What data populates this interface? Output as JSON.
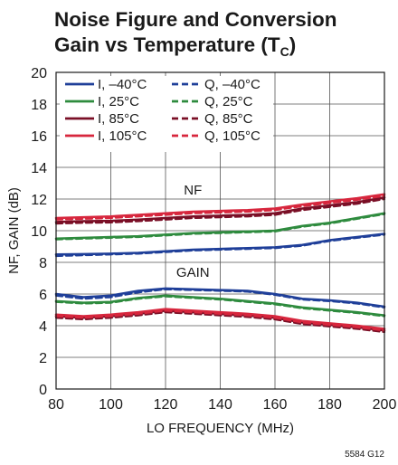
{
  "chart_data": {
    "type": "line",
    "title_line1": "Noise Figure and Conversion",
    "title_line2": "Gain vs Temperature (T",
    "title_sub": "C",
    "title_close": ")",
    "xlabel": "LO FREQUENCY (MHz)",
    "ylabel": "NF, GAIN (dB)",
    "xlim": [
      80,
      200
    ],
    "ylim": [
      0,
      20
    ],
    "xticks": [
      "80",
      "100",
      "120",
      "140",
      "160",
      "180",
      "200"
    ],
    "yticks": [
      "0",
      "2",
      "4",
      "6",
      "8",
      "10",
      "12",
      "14",
      "16",
      "18",
      "20"
    ],
    "grid": true,
    "legend_position": "top-left",
    "annotations": [
      "NF",
      "GAIN"
    ],
    "figure_code": "5584 G12",
    "x": [
      80,
      90,
      100,
      110,
      120,
      130,
      140,
      150,
      160,
      170,
      180,
      190,
      200
    ],
    "series": [
      {
        "name": "I, –40°C",
        "color": "#1f3f99",
        "dash": false,
        "group": "nf",
        "values": [
          8.5,
          8.52,
          8.55,
          8.6,
          8.7,
          8.8,
          8.85,
          8.9,
          8.95,
          9.1,
          9.4,
          9.6,
          9.8
        ]
      },
      {
        "name": "Q, –40°C",
        "color": "#1f3f99",
        "dash": true,
        "group": "nf",
        "values": [
          8.4,
          8.45,
          8.5,
          8.55,
          8.65,
          8.75,
          8.8,
          8.85,
          8.9,
          9.05,
          9.35,
          9.55,
          9.75
        ]
      },
      {
        "name": "I, 25°C",
        "color": "#2e8b3e",
        "dash": false,
        "group": "nf",
        "values": [
          9.5,
          9.55,
          9.6,
          9.65,
          9.75,
          9.85,
          9.9,
          9.95,
          10.0,
          10.3,
          10.5,
          10.8,
          11.1
        ]
      },
      {
        "name": "Q, 25°C",
        "color": "#2e8b3e",
        "dash": true,
        "group": "nf",
        "values": [
          9.45,
          9.5,
          9.55,
          9.6,
          9.7,
          9.8,
          9.85,
          9.9,
          9.95,
          10.25,
          10.45,
          10.75,
          11.05
        ]
      },
      {
        "name": "I, 85°C",
        "color": "#7a0f26",
        "dash": false,
        "group": "nf",
        "values": [
          10.55,
          10.6,
          10.62,
          10.7,
          10.8,
          10.9,
          10.95,
          11.0,
          11.1,
          11.4,
          11.6,
          11.8,
          12.1
        ]
      },
      {
        "name": "Q, 85°C",
        "color": "#7a0f26",
        "dash": true,
        "group": "nf",
        "values": [
          10.45,
          10.5,
          10.52,
          10.6,
          10.7,
          10.8,
          10.85,
          10.9,
          11.0,
          11.3,
          11.5,
          11.7,
          12.0
        ]
      },
      {
        "name": "I, 105°C",
        "color": "#d7263d",
        "dash": false,
        "group": "nf",
        "values": [
          10.8,
          10.85,
          10.9,
          11.0,
          11.1,
          11.2,
          11.25,
          11.3,
          11.4,
          11.65,
          11.85,
          12.05,
          12.3
        ]
      },
      {
        "name": "Q, 105°C",
        "color": "#d7263d",
        "dash": true,
        "group": "nf",
        "values": [
          10.7,
          10.75,
          10.8,
          10.9,
          11.0,
          11.1,
          11.15,
          11.2,
          11.3,
          11.55,
          11.75,
          11.95,
          12.2
        ]
      },
      {
        "name": "I, –40°C",
        "color": "#1f3f99",
        "dash": false,
        "group": "gain",
        "values": [
          6.0,
          5.8,
          5.9,
          6.2,
          6.35,
          6.3,
          6.25,
          6.2,
          6.0,
          5.7,
          5.6,
          5.45,
          5.2
        ]
      },
      {
        "name": "Q, –40°C",
        "color": "#1f3f99",
        "dash": true,
        "group": "gain",
        "values": [
          5.9,
          5.7,
          5.8,
          6.1,
          6.3,
          6.25,
          6.2,
          6.15,
          5.95,
          5.65,
          5.55,
          5.4,
          5.15
        ]
      },
      {
        "name": "I, 25°C",
        "color": "#2e8b3e",
        "dash": false,
        "group": "gain",
        "values": [
          5.55,
          5.45,
          5.5,
          5.75,
          5.9,
          5.8,
          5.7,
          5.55,
          5.4,
          5.15,
          5.0,
          4.85,
          4.65
        ]
      },
      {
        "name": "Q, 25°C",
        "color": "#2e8b3e",
        "dash": true,
        "group": "gain",
        "values": [
          5.5,
          5.4,
          5.45,
          5.7,
          5.85,
          5.75,
          5.65,
          5.5,
          5.35,
          5.1,
          4.95,
          4.8,
          4.6
        ]
      },
      {
        "name": "I, 85°C",
        "color": "#7a0f26",
        "dash": false,
        "group": "gain",
        "values": [
          4.6,
          4.5,
          4.6,
          4.75,
          4.95,
          4.85,
          4.75,
          4.65,
          4.5,
          4.2,
          4.05,
          3.9,
          3.7
        ]
      },
      {
        "name": "Q, 85°C",
        "color": "#7a0f26",
        "dash": true,
        "group": "gain",
        "values": [
          4.5,
          4.4,
          4.5,
          4.65,
          4.85,
          4.75,
          4.65,
          4.55,
          4.4,
          4.1,
          3.95,
          3.8,
          3.6
        ]
      },
      {
        "name": "I, 105°C",
        "color": "#d7263d",
        "dash": false,
        "group": "gain",
        "values": [
          4.7,
          4.6,
          4.7,
          4.85,
          5.05,
          4.95,
          4.85,
          4.75,
          4.6,
          4.3,
          4.15,
          4.0,
          3.8
        ]
      },
      {
        "name": "Q, 105°C",
        "color": "#d7263d",
        "dash": true,
        "group": "gain",
        "values": [
          4.6,
          4.5,
          4.6,
          4.75,
          4.95,
          4.85,
          4.75,
          4.65,
          4.5,
          4.2,
          4.05,
          3.9,
          3.7
        ]
      }
    ],
    "legend": [
      {
        "label": "I, –40°C",
        "color": "#1f3f99",
        "dash": false
      },
      {
        "label": "Q, –40°C",
        "color": "#1f3f99",
        "dash": true
      },
      {
        "label": "I, 25°C",
        "color": "#2e8b3e",
        "dash": false
      },
      {
        "label": "Q, 25°C",
        "color": "#2e8b3e",
        "dash": true
      },
      {
        "label": "I, 85°C",
        "color": "#7a0f26",
        "dash": false
      },
      {
        "label": "Q, 85°C",
        "color": "#7a0f26",
        "dash": true
      },
      {
        "label": "I, 105°C",
        "color": "#d7263d",
        "dash": false
      },
      {
        "label": "Q, 105°C",
        "color": "#d7263d",
        "dash": true
      }
    ]
  }
}
